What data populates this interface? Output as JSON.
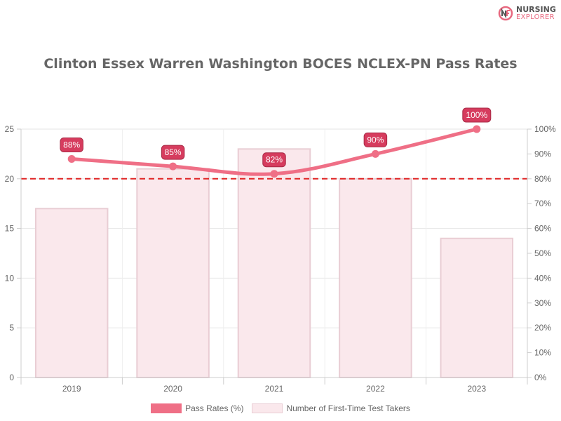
{
  "brand": {
    "line1": "NURSING",
    "line2": "EXPLORER"
  },
  "chart_data": {
    "type": "bar+line",
    "title": "Clinton Essex Warren Washington BOCES NCLEX-PN Pass Rates",
    "categories": [
      "2019",
      "2020",
      "2021",
      "2022",
      "2023"
    ],
    "series": [
      {
        "name": "Pass Rates (%)",
        "type": "line",
        "axis": "right",
        "values": [
          88,
          85,
          82,
          90,
          100
        ],
        "labels": [
          "88%",
          "85%",
          "82%",
          "90%",
          "100%"
        ],
        "color": "#ef6f86"
      },
      {
        "name": "Number of First-Time Test Takers",
        "type": "bar",
        "axis": "left",
        "values": [
          17,
          21,
          23,
          20,
          14
        ],
        "color": "#fae8ec"
      }
    ],
    "y_left": {
      "min": 0,
      "max": 25,
      "ticks": [
        "0",
        "5",
        "10",
        "15",
        "20",
        "25"
      ]
    },
    "y_right": {
      "min": 0,
      "max": 100,
      "ticks": [
        "0%",
        "10%",
        "20%",
        "30%",
        "40%",
        "50%",
        "60%",
        "70%",
        "80%",
        "90%",
        "100%"
      ]
    },
    "reference_line": {
      "axis": "right",
      "value": 80,
      "style": "dashed",
      "color": "#e02424"
    },
    "grid": true,
    "legend": "bottom"
  }
}
